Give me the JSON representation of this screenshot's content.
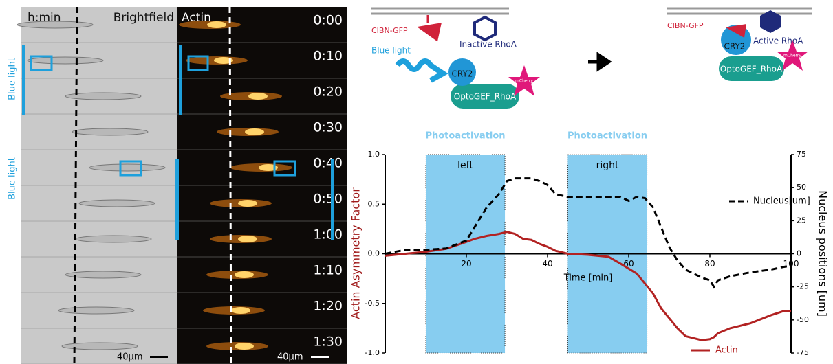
{
  "chart_data": {
    "type": "line",
    "x_label": "Time [min]",
    "y_label": "Actin Asymmetry Factor",
    "y2_label": "Nucleus positions [um]",
    "x": [
      0,
      5,
      10,
      15,
      20,
      22,
      25,
      28,
      30,
      32,
      34,
      36,
      38,
      40,
      42,
      45,
      50,
      55,
      58,
      60,
      62,
      64,
      66,
      68,
      70,
      72,
      74,
      76,
      78,
      80,
      81,
      82,
      85,
      90,
      95,
      98,
      100
    ],
    "series": [
      {
        "name": "Actin",
        "color": "#b22222",
        "values": [
          -0.02,
          0,
          0.02,
          0.05,
          0.12,
          0.15,
          0.18,
          0.2,
          0.22,
          0.2,
          0.15,
          0.14,
          0.1,
          0.07,
          0.03,
          0,
          -0.01,
          -0.03,
          -0.1,
          -0.15,
          -0.2,
          -0.3,
          -0.4,
          -0.55,
          -0.65,
          -0.75,
          -0.83,
          -0.85,
          -0.87,
          -0.86,
          -0.84,
          -0.8,
          -0.75,
          -0.7,
          -0.62,
          -0.58,
          -0.58
        ]
      },
      {
        "name": "Nucleus[um]",
        "color": "#000000",
        "axis": "y2",
        "values": [
          0,
          3,
          3,
          4,
          10,
          20,
          35,
          45,
          55,
          57,
          57,
          57,
          55,
          52,
          45,
          43,
          43,
          43,
          43,
          40,
          43,
          42,
          35,
          20,
          5,
          -5,
          -12,
          -15,
          -18,
          -20,
          -25,
          -20,
          -17,
          -14,
          -12,
          -10,
          -9
        ]
      }
    ],
    "xlim": [
      0,
      100
    ],
    "xticks": [
      20,
      40,
      60,
      80,
      100
    ],
    "ylim": [
      -1,
      1
    ],
    "yticks": [
      {
        "value": 1,
        "label": "1.0"
      },
      {
        "value": 0.5,
        "label": "0.5"
      },
      {
        "value": 0,
        "label": "0.0"
      },
      {
        "value": -0.5,
        "label": "-0.5"
      },
      {
        "value": -1,
        "label": "-1.0"
      }
    ],
    "y2lim": [
      -75,
      75
    ],
    "y2ticks": [
      75,
      50,
      25,
      0,
      -25,
      -50,
      -75
    ],
    "shaded_regions": [
      {
        "header": "Photoactivation",
        "label": "left",
        "x": [
          10,
          29.5
        ]
      },
      {
        "header": "Photoactivation",
        "label": "right",
        "x": [
          45,
          64.5
        ]
      }
    ]
  },
  "microscopy": {
    "time_header": "h:min",
    "brightfield": "Brightfield",
    "actin": "Actin",
    "times": [
      "0:00",
      "0:10",
      "0:20",
      "0:30",
      "0:40",
      "0:50",
      "1:00",
      "1:10",
      "1:20",
      "1:30"
    ],
    "blue_light": [
      "Blue light",
      "Blue light"
    ],
    "scale_bars": [
      "40µm",
      "40µm"
    ]
  },
  "diagram": {
    "before": {
      "cibn": "CIBN-GFP",
      "rhoa": "Inactive RhoA",
      "light": "Blue light",
      "cry2": "CRY2",
      "mcherry": "mCherry",
      "gef": "OptoGEF_RhoA"
    },
    "after": {
      "cibn": "CIBN-GFP",
      "cry2": "CRY2",
      "rhoa": "Active RhoA",
      "mcherry": "mCherry",
      "gef": "OptoGEF_RhoA"
    }
  }
}
